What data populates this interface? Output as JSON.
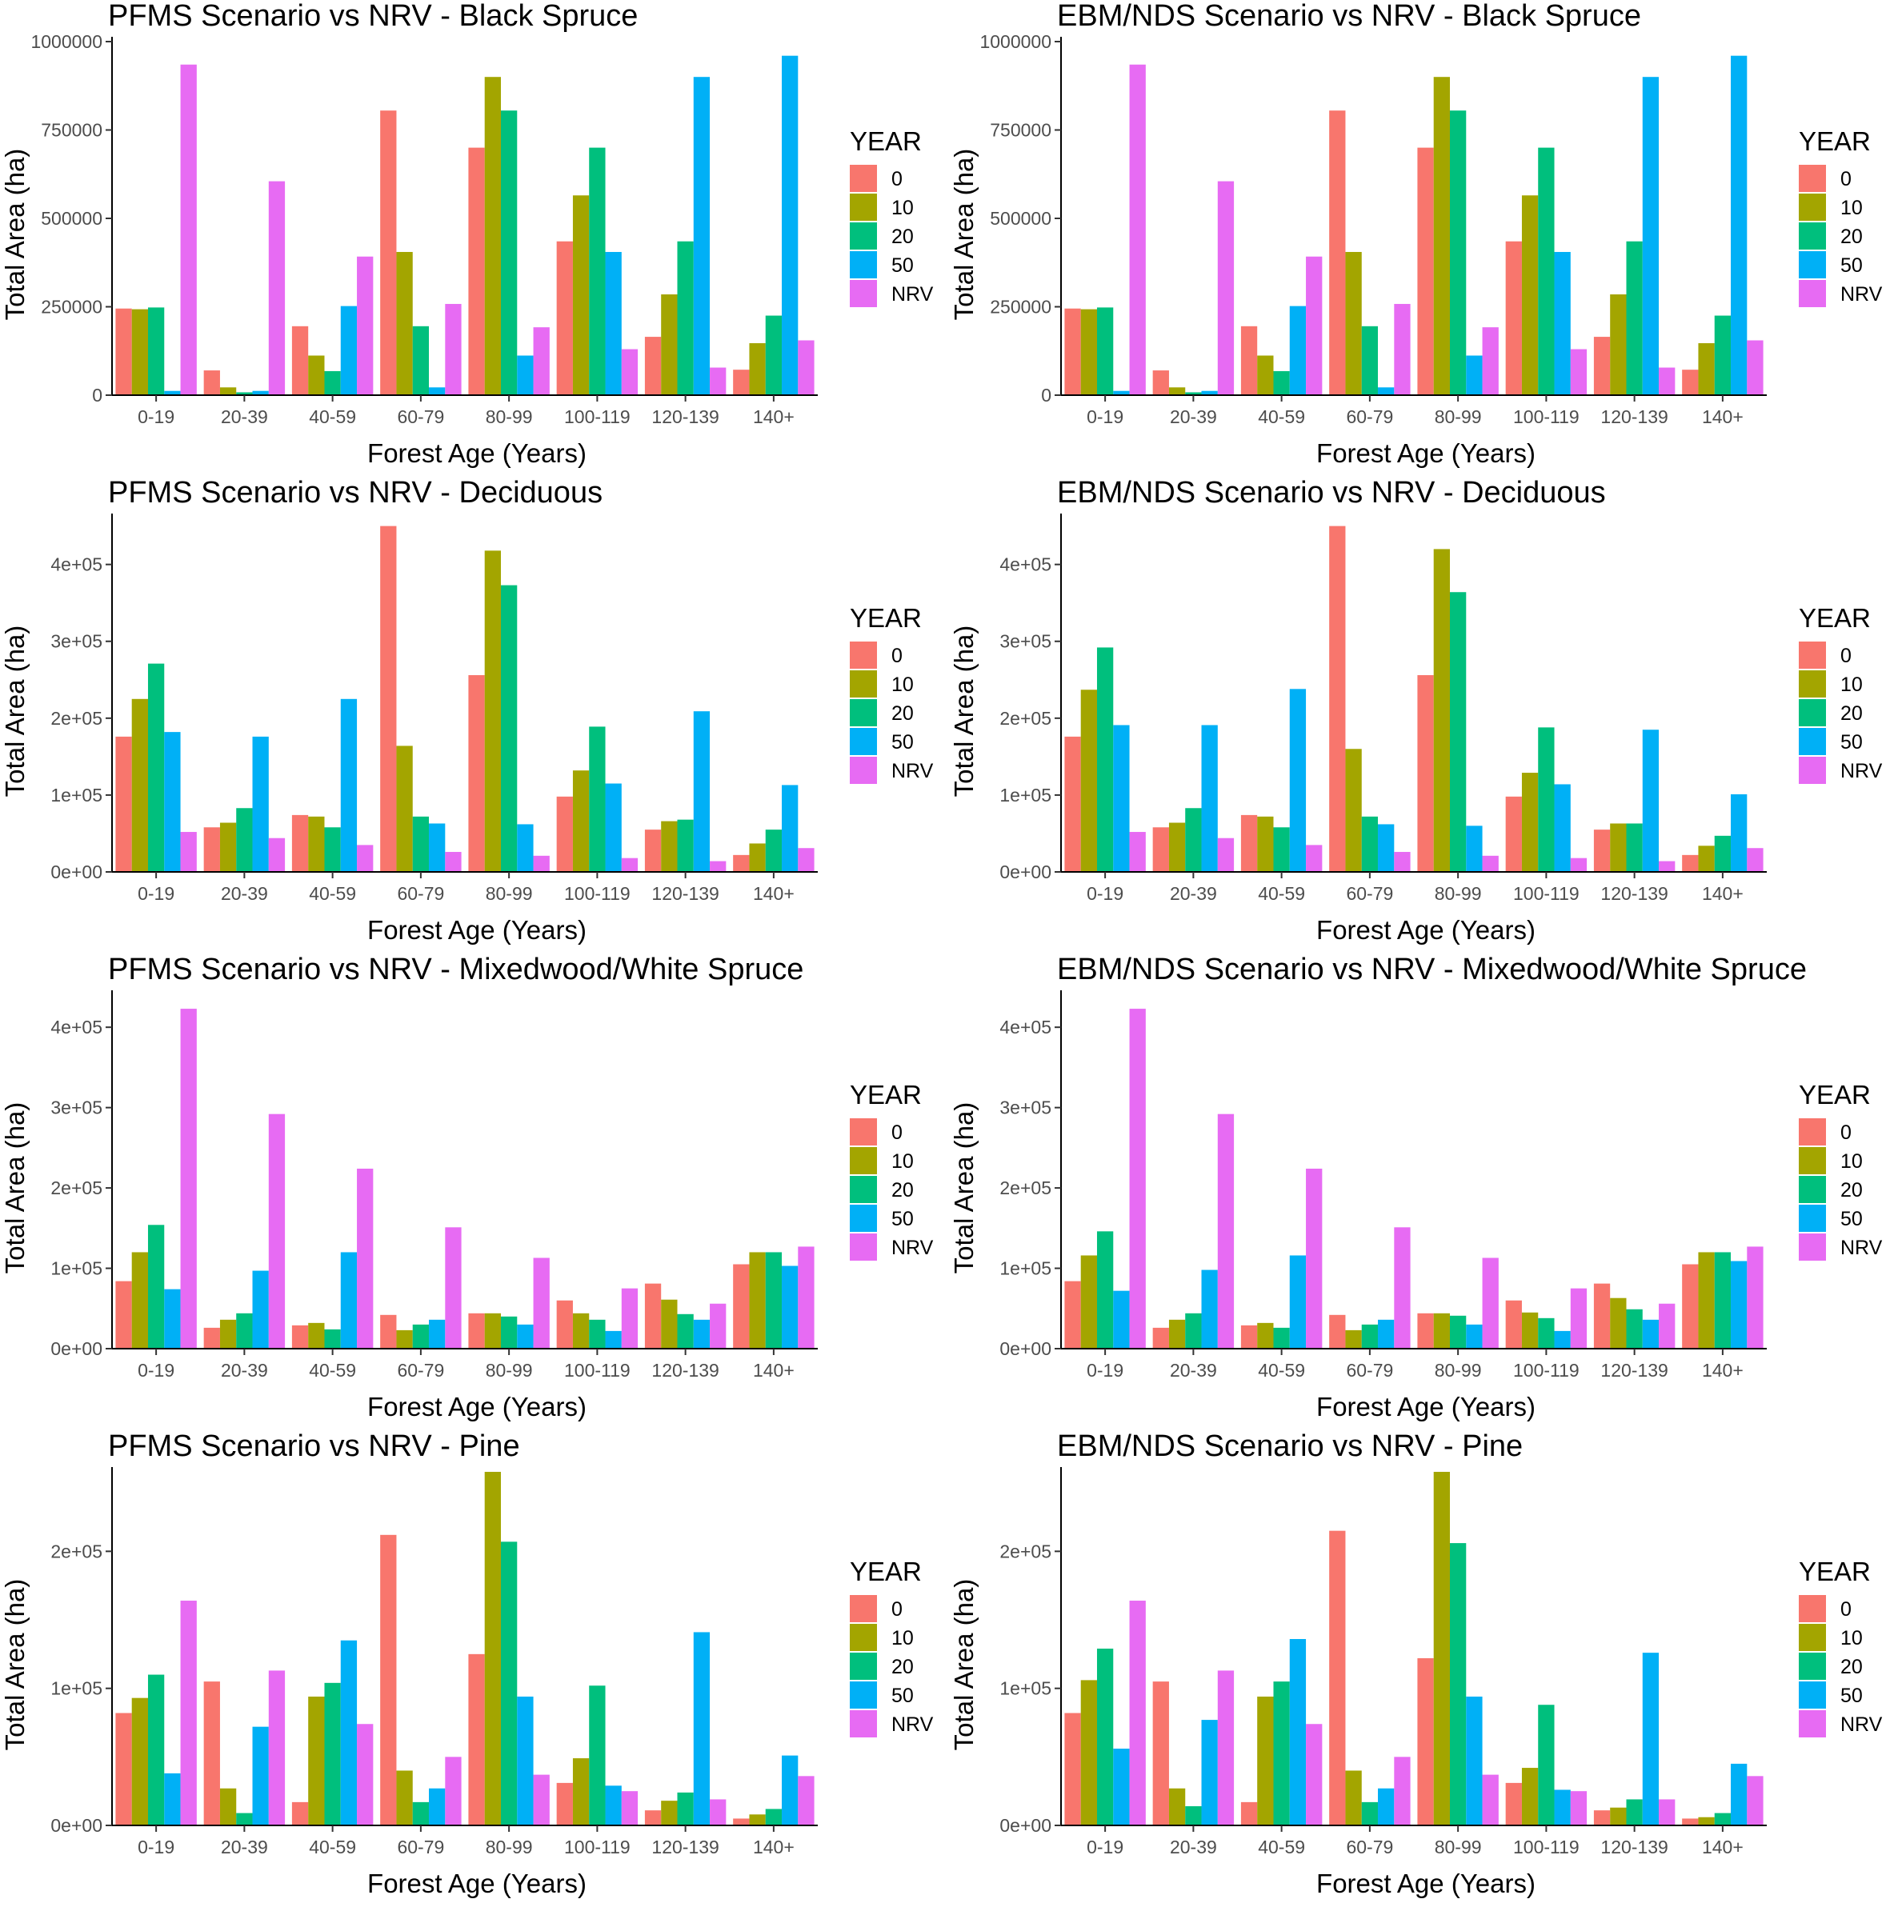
{
  "figure": {
    "legend_title": "YEAR",
    "series_colors": {
      "0": "#F8766D",
      "10": "#A3A500",
      "20": "#00BF7D",
      "50": "#00B0F6",
      "NRV": "#E76BF3"
    }
  },
  "chart_data": [
    {
      "type": "bar",
      "title": "PFMS Scenario vs NRV - Black Spruce",
      "xlabel": "Forest Age (Years)",
      "ylabel": "Total Area (ha)",
      "categories": [
        "0-19",
        "20-39",
        "40-59",
        "60-79",
        "80-99",
        "100-119",
        "120-139",
        "140+"
      ],
      "ylim": [
        0,
        1000000
      ],
      "yticks": [
        0,
        250000,
        500000,
        750000,
        1000000
      ],
      "ytick_labels": [
        "0",
        "250000",
        "500000",
        "750000",
        "1000000"
      ],
      "legend_title": "YEAR",
      "series": [
        {
          "name": "0",
          "color": "#F8766D",
          "values": [
            245000,
            70000,
            195000,
            805000,
            700000,
            435000,
            165000,
            72000
          ]
        },
        {
          "name": "10",
          "color": "#A3A500",
          "values": [
            243000,
            22000,
            112000,
            405000,
            900000,
            565000,
            285000,
            147000
          ]
        },
        {
          "name": "20",
          "color": "#00BF7D",
          "values": [
            248000,
            8000,
            68000,
            195000,
            805000,
            700000,
            435000,
            225000
          ]
        },
        {
          "name": "50",
          "color": "#00B0F6",
          "values": [
            12000,
            12000,
            252000,
            22000,
            112000,
            405000,
            900000,
            960000
          ]
        },
        {
          "name": "NRV",
          "color": "#E76BF3",
          "values": [
            935000,
            605000,
            392000,
            258000,
            192000,
            130000,
            78000,
            155000
          ]
        }
      ]
    },
    {
      "type": "bar",
      "title": "EBM/NDS Scenario vs NRV - Black Spruce",
      "xlabel": "Forest Age (Years)",
      "ylabel": "Total Area (ha)",
      "categories": [
        "0-19",
        "20-39",
        "40-59",
        "60-79",
        "80-99",
        "100-119",
        "120-139",
        "140+"
      ],
      "ylim": [
        0,
        1000000
      ],
      "yticks": [
        0,
        250000,
        500000,
        750000,
        1000000
      ],
      "ytick_labels": [
        "0",
        "250000",
        "500000",
        "750000",
        "1000000"
      ],
      "legend_title": "YEAR",
      "series": [
        {
          "name": "0",
          "color": "#F8766D",
          "values": [
            245000,
            70000,
            195000,
            805000,
            700000,
            435000,
            165000,
            72000
          ]
        },
        {
          "name": "10",
          "color": "#A3A500",
          "values": [
            243000,
            22000,
            112000,
            405000,
            900000,
            565000,
            285000,
            147000
          ]
        },
        {
          "name": "20",
          "color": "#00BF7D",
          "values": [
            248000,
            8000,
            68000,
            195000,
            805000,
            700000,
            435000,
            225000
          ]
        },
        {
          "name": "50",
          "color": "#00B0F6",
          "values": [
            12000,
            12000,
            252000,
            22000,
            112000,
            405000,
            900000,
            960000
          ]
        },
        {
          "name": "NRV",
          "color": "#E76BF3",
          "values": [
            935000,
            605000,
            392000,
            258000,
            192000,
            130000,
            78000,
            155000
          ]
        }
      ]
    },
    {
      "type": "bar",
      "title": "PFMS Scenario vs NRV - Deciduous",
      "xlabel": "Forest Age (Years)",
      "ylabel": "Total Area (ha)",
      "categories": [
        "0-19",
        "20-39",
        "40-59",
        "60-79",
        "80-99",
        "100-119",
        "120-139",
        "140+"
      ],
      "ylim": [
        0,
        460000
      ],
      "yticks": [
        0,
        100000,
        200000,
        300000,
        400000
      ],
      "ytick_labels": [
        "0e+00",
        "1e+05",
        "2e+05",
        "3e+05",
        "4e+05"
      ],
      "legend_title": "YEAR",
      "series": [
        {
          "name": "0",
          "color": "#F8766D",
          "values": [
            176000,
            58000,
            74000,
            450000,
            256000,
            98000,
            55000,
            22000
          ]
        },
        {
          "name": "10",
          "color": "#A3A500",
          "values": [
            225000,
            64000,
            72000,
            164000,
            418000,
            132000,
            66000,
            37000
          ]
        },
        {
          "name": "20",
          "color": "#00BF7D",
          "values": [
            271000,
            83000,
            58000,
            72000,
            373000,
            189000,
            68000,
            55000
          ]
        },
        {
          "name": "50",
          "color": "#00B0F6",
          "values": [
            182000,
            176000,
            225000,
            63000,
            62000,
            115000,
            209000,
            113000
          ]
        },
        {
          "name": "NRV",
          "color": "#E76BF3",
          "values": [
            52000,
            44000,
            35000,
            26000,
            21000,
            18000,
            14000,
            31000
          ]
        }
      ]
    },
    {
      "type": "bar",
      "title": "EBM/NDS Scenario vs NRV - Deciduous",
      "xlabel": "Forest Age (Years)",
      "ylabel": "Total Area (ha)",
      "categories": [
        "0-19",
        "20-39",
        "40-59",
        "60-79",
        "80-99",
        "100-119",
        "120-139",
        "140+"
      ],
      "ylim": [
        0,
        460000
      ],
      "yticks": [
        0,
        100000,
        200000,
        300000,
        400000
      ],
      "ytick_labels": [
        "0e+00",
        "1e+05",
        "2e+05",
        "3e+05",
        "4e+05"
      ],
      "legend_title": "YEAR",
      "series": [
        {
          "name": "0",
          "color": "#F8766D",
          "values": [
            176000,
            58000,
            74000,
            450000,
            256000,
            98000,
            55000,
            22000
          ]
        },
        {
          "name": "10",
          "color": "#A3A500",
          "values": [
            237000,
            64000,
            72000,
            160000,
            420000,
            129000,
            63000,
            34000
          ]
        },
        {
          "name": "20",
          "color": "#00BF7D",
          "values": [
            292000,
            83000,
            58000,
            72000,
            364000,
            188000,
            63000,
            47000
          ]
        },
        {
          "name": "50",
          "color": "#00B0F6",
          "values": [
            191000,
            191000,
            238000,
            62000,
            60000,
            114000,
            185000,
            101000
          ]
        },
        {
          "name": "NRV",
          "color": "#E76BF3",
          "values": [
            52000,
            44000,
            35000,
            26000,
            21000,
            18000,
            14000,
            31000
          ]
        }
      ]
    },
    {
      "type": "bar",
      "title": "PFMS Scenario vs NRV - Mixedwood/White Spruce",
      "xlabel": "Forest Age (Years)",
      "ylabel": "Total Area (ha)",
      "categories": [
        "0-19",
        "20-39",
        "40-59",
        "60-79",
        "80-99",
        "100-119",
        "120-139",
        "140+"
      ],
      "ylim": [
        0,
        440000
      ],
      "yticks": [
        0,
        100000,
        200000,
        300000,
        400000
      ],
      "ytick_labels": [
        "0e+00",
        "1e+05",
        "2e+05",
        "3e+05",
        "4e+05"
      ],
      "legend_title": "YEAR",
      "series": [
        {
          "name": "0",
          "color": "#F8766D",
          "values": [
            84000,
            26000,
            29000,
            42000,
            44000,
            60000,
            81000,
            105000
          ]
        },
        {
          "name": "10",
          "color": "#A3A500",
          "values": [
            120000,
            36000,
            32000,
            23000,
            44000,
            44000,
            61000,
            120000
          ]
        },
        {
          "name": "20",
          "color": "#00BF7D",
          "values": [
            154000,
            44000,
            24000,
            30000,
            40000,
            36000,
            43000,
            120000
          ]
        },
        {
          "name": "50",
          "color": "#00B0F6",
          "values": [
            74000,
            97000,
            120000,
            36000,
            30000,
            22000,
            36000,
            103000
          ]
        },
        {
          "name": "NRV",
          "color": "#E76BF3",
          "values": [
            423000,
            292000,
            224000,
            151000,
            113000,
            75000,
            56000,
            127000
          ]
        }
      ]
    },
    {
      "type": "bar",
      "title": "EBM/NDS Scenario vs NRV - Mixedwood/White Spruce",
      "xlabel": "Forest Age (Years)",
      "ylabel": "Total Area (ha)",
      "categories": [
        "0-19",
        "20-39",
        "40-59",
        "60-79",
        "80-99",
        "100-119",
        "120-139",
        "140+"
      ],
      "ylim": [
        0,
        440000
      ],
      "yticks": [
        0,
        100000,
        200000,
        300000,
        400000
      ],
      "ytick_labels": [
        "0e+00",
        "1e+05",
        "2e+05",
        "3e+05",
        "4e+05"
      ],
      "legend_title": "YEAR",
      "series": [
        {
          "name": "0",
          "color": "#F8766D",
          "values": [
            84000,
            26000,
            29000,
            42000,
            44000,
            60000,
            81000,
            105000
          ]
        },
        {
          "name": "10",
          "color": "#A3A500",
          "values": [
            116000,
            36000,
            32000,
            23000,
            44000,
            45000,
            63000,
            120000
          ]
        },
        {
          "name": "20",
          "color": "#00BF7D",
          "values": [
            146000,
            44000,
            26000,
            30000,
            41000,
            38000,
            49000,
            120000
          ]
        },
        {
          "name": "50",
          "color": "#00B0F6",
          "values": [
            72000,
            98000,
            116000,
            36000,
            30000,
            22000,
            36000,
            109000
          ]
        },
        {
          "name": "NRV",
          "color": "#E76BF3",
          "values": [
            423000,
            292000,
            224000,
            151000,
            113000,
            75000,
            56000,
            127000
          ]
        }
      ]
    },
    {
      "type": "bar",
      "title": "PFMS Scenario vs NRV - Pine",
      "xlabel": "Forest Age (Years)",
      "ylabel": "Total Area (ha)",
      "categories": [
        "0-19",
        "20-39",
        "40-59",
        "60-79",
        "80-99",
        "100-119",
        "120-139",
        "140+"
      ],
      "ylim": [
        0,
        258000
      ],
      "yticks": [
        0,
        100000,
        200000
      ],
      "ytick_labels": [
        "0e+00",
        "1e+05",
        "2e+05"
      ],
      "legend_title": "YEAR",
      "series": [
        {
          "name": "0",
          "color": "#F8766D",
          "values": [
            82000,
            105000,
            17000,
            212000,
            125000,
            31000,
            11000,
            5000
          ]
        },
        {
          "name": "10",
          "color": "#A3A500",
          "values": [
            93000,
            27000,
            94000,
            40000,
            258000,
            49000,
            18000,
            8000
          ]
        },
        {
          "name": "20",
          "color": "#00BF7D",
          "values": [
            110000,
            9000,
            104000,
            17000,
            207000,
            102000,
            24000,
            12000
          ]
        },
        {
          "name": "50",
          "color": "#00B0F6",
          "values": [
            38000,
            72000,
            135000,
            27000,
            94000,
            29000,
            141000,
            51000
          ]
        },
        {
          "name": "NRV",
          "color": "#E76BF3",
          "values": [
            164000,
            113000,
            74000,
            50000,
            37000,
            25000,
            19000,
            36000
          ]
        }
      ]
    },
    {
      "type": "bar",
      "title": "EBM/NDS Scenario vs NRV - Pine",
      "xlabel": "Forest Age (Years)",
      "ylabel": "Total Area (ha)",
      "categories": [
        "0-19",
        "20-39",
        "40-59",
        "60-79",
        "80-99",
        "100-119",
        "120-139",
        "140+"
      ],
      "ylim": [
        0,
        258000
      ],
      "yticks": [
        0,
        100000,
        200000
      ],
      "ytick_labels": [
        "0e+00",
        "1e+05",
        "2e+05"
      ],
      "legend_title": "YEAR",
      "series": [
        {
          "name": "0",
          "color": "#F8766D",
          "values": [
            82000,
            105000,
            17000,
            215000,
            122000,
            31000,
            11000,
            5000
          ]
        },
        {
          "name": "10",
          "color": "#A3A500",
          "values": [
            106000,
            27000,
            94000,
            40000,
            258000,
            42000,
            13000,
            6000
          ]
        },
        {
          "name": "20",
          "color": "#00BF7D",
          "values": [
            129000,
            14000,
            105000,
            17000,
            206000,
            88000,
            19000,
            9000
          ]
        },
        {
          "name": "50",
          "color": "#00B0F6",
          "values": [
            56000,
            77000,
            136000,
            27000,
            94000,
            26000,
            126000,
            45000
          ]
        },
        {
          "name": "NRV",
          "color": "#E76BF3",
          "values": [
            164000,
            113000,
            74000,
            50000,
            37000,
            25000,
            19000,
            36000
          ]
        }
      ]
    }
  ]
}
